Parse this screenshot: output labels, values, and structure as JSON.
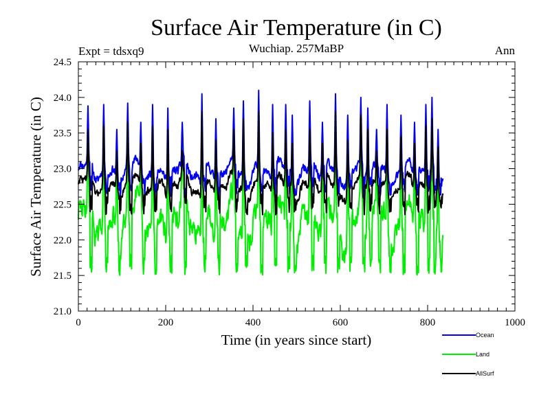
{
  "chart_data": {
    "type": "line",
    "title": "Surface Air Temperature (in C)",
    "subtitle": "Wuchiap. 257MaBP",
    "experiment_label": "Expt = tdsxq9",
    "period_label": "Ann",
    "xlabel": "Time (in years since start)",
    "ylabel": "Surface Air Temperature (in C)",
    "xlim": [
      0,
      1000
    ],
    "ylim": [
      21.0,
      24.5
    ],
    "xticks": [
      0,
      200,
      400,
      600,
      800,
      1000
    ],
    "yticks": [
      "21.0",
      "21.5",
      "22.0",
      "22.5",
      "23.0",
      "23.5",
      "24.0",
      "24.5"
    ],
    "x_end": 835,
    "legend_position": "bottom-right",
    "series": [
      {
        "name": "Ocean",
        "color": "#0000ee",
        "baseline": 22.95,
        "low": 22.6,
        "high": 23.5,
        "noise": 0.09,
        "peaks": [
          [
            22,
            23.88
          ],
          [
            58,
            23.9
          ],
          [
            88,
            23.55
          ],
          [
            113,
            23.92
          ],
          [
            143,
            23.65
          ],
          [
            170,
            23.9
          ],
          [
            205,
            23.85
          ],
          [
            238,
            23.65
          ],
          [
            283,
            24.05
          ],
          [
            315,
            23.7
          ],
          [
            356,
            23.85
          ],
          [
            378,
            23.95
          ],
          [
            413,
            24.1
          ],
          [
            445,
            23.9
          ],
          [
            475,
            23.9
          ],
          [
            490,
            23.75
          ],
          [
            530,
            23.95
          ],
          [
            559,
            23.65
          ],
          [
            589,
            24.05
          ],
          [
            617,
            23.75
          ],
          [
            647,
            24.0
          ],
          [
            663,
            23.85
          ],
          [
            683,
            23.55
          ],
          [
            707,
            23.9
          ],
          [
            739,
            23.75
          ],
          [
            770,
            23.65
          ],
          [
            796,
            23.9
          ],
          [
            810,
            24.0
          ],
          [
            824,
            23.55
          ]
        ]
      },
      {
        "name": "Land",
        "color": "#00ee00",
        "baseline": 22.25,
        "low": 21.5,
        "high": 23.2,
        "noise": 0.22,
        "peaks": [
          [
            22,
            23.7
          ],
          [
            58,
            23.75
          ],
          [
            88,
            23.4
          ],
          [
            113,
            23.8
          ],
          [
            143,
            23.5
          ],
          [
            170,
            23.8
          ],
          [
            205,
            23.7
          ],
          [
            238,
            23.4
          ],
          [
            283,
            23.95
          ],
          [
            315,
            23.5
          ],
          [
            356,
            23.7
          ],
          [
            378,
            23.9
          ],
          [
            413,
            23.95
          ],
          [
            445,
            23.6
          ],
          [
            475,
            23.6
          ],
          [
            490,
            23.5
          ],
          [
            530,
            23.7
          ],
          [
            559,
            23.45
          ],
          [
            589,
            23.9
          ],
          [
            617,
            23.55
          ],
          [
            647,
            23.8
          ],
          [
            663,
            23.7
          ],
          [
            683,
            23.3
          ],
          [
            707,
            23.7
          ],
          [
            739,
            23.55
          ],
          [
            770,
            23.45
          ],
          [
            796,
            23.75
          ],
          [
            810,
            23.85
          ],
          [
            824,
            23.4
          ]
        ]
      },
      {
        "name": "AllSurf",
        "color": "#000000",
        "baseline": 22.75,
        "low": 22.35,
        "high": 23.25,
        "noise": 0.08,
        "peaks": [
          [
            22,
            23.55
          ],
          [
            58,
            23.6
          ],
          [
            88,
            23.25
          ],
          [
            113,
            23.65
          ],
          [
            143,
            23.35
          ],
          [
            170,
            23.6
          ],
          [
            205,
            23.55
          ],
          [
            238,
            23.25
          ],
          [
            283,
            23.8
          ],
          [
            315,
            23.4
          ],
          [
            356,
            23.55
          ],
          [
            378,
            23.7
          ],
          [
            413,
            23.8
          ],
          [
            445,
            23.5
          ],
          [
            475,
            23.55
          ],
          [
            490,
            23.35
          ],
          [
            530,
            23.55
          ],
          [
            559,
            23.35
          ],
          [
            589,
            23.8
          ],
          [
            617,
            23.4
          ],
          [
            647,
            23.75
          ],
          [
            663,
            23.55
          ],
          [
            683,
            23.25
          ],
          [
            707,
            23.55
          ],
          [
            739,
            23.45
          ],
          [
            770,
            23.35
          ],
          [
            796,
            23.6
          ],
          [
            810,
            23.7
          ],
          [
            824,
            23.3
          ]
        ]
      }
    ]
  }
}
